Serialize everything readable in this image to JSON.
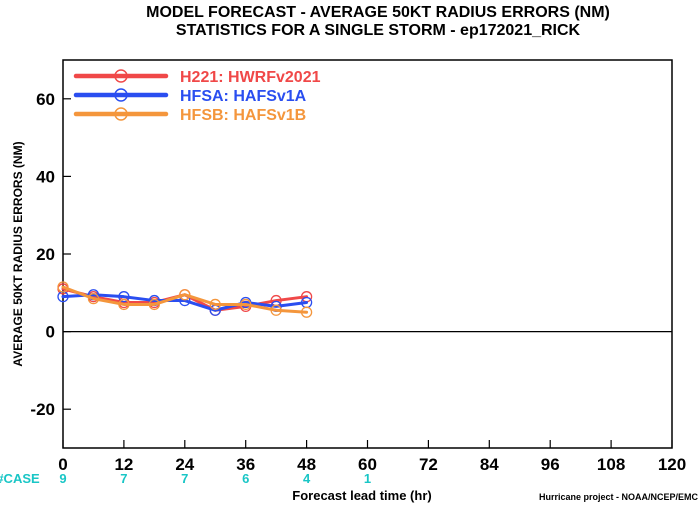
{
  "chart_data": {
    "type": "line",
    "title_line1": "MODEL FORECAST - AVERAGE 50KT RADIUS ERRORS (NM)",
    "title_line2": "STATISTICS FOR A SINGLE STORM - ep172021_RICK",
    "xlabel": "Forecast lead time (hr)",
    "ylabel": "AVERAGE 50KT RADIUS ERRORS (NM)",
    "xlim": [
      0,
      120
    ],
    "ylim": [
      -30,
      70
    ],
    "x_ticks": [
      0,
      12,
      24,
      36,
      48,
      60,
      72,
      84,
      96,
      108,
      120
    ],
    "y_ticks": [
      -20,
      0,
      20,
      40,
      60
    ],
    "zero_line": true,
    "legend_position": "top-left",
    "case_label": "#CASE",
    "case_ticks": [
      0,
      12,
      24,
      36,
      48,
      60
    ],
    "case_counts": [
      "9",
      "7",
      "7",
      "6",
      "4",
      "1"
    ],
    "credit": "Hurricane project - NOAA/NCEP/EMC",
    "series": [
      {
        "name": "H221: HWRFv2021",
        "color": "#f04848",
        "x": [
          0,
          6,
          12,
          18,
          24,
          30,
          36,
          42,
          48
        ],
        "values": [
          11,
          9,
          7.5,
          7.5,
          9.5,
          5.5,
          6.5,
          8,
          9
        ]
      },
      {
        "name": "HFSA: HAFSv1A",
        "color": "#2a4ef0",
        "x": [
          0,
          6,
          12,
          18,
          24,
          30,
          36,
          42,
          48
        ],
        "values": [
          9,
          9.5,
          9,
          8,
          8,
          5.5,
          7.5,
          6.5,
          7.5
        ]
      },
      {
        "name": "HFSB: HAFSv1B",
        "color": "#f4963c",
        "x": [
          0,
          6,
          12,
          18,
          24,
          30,
          36,
          42,
          48
        ],
        "values": [
          11.5,
          8.5,
          7,
          7,
          9.5,
          7,
          7,
          5.5,
          5
        ]
      }
    ]
  }
}
